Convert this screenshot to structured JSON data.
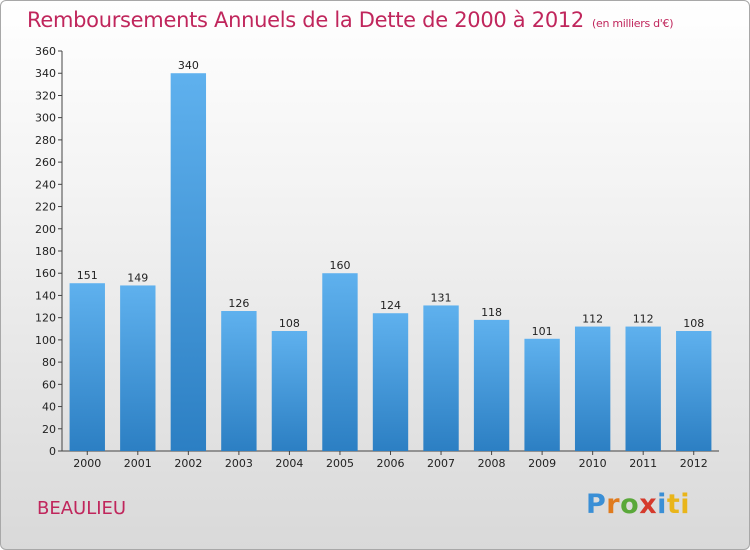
{
  "title": "Remboursements Annuels de la Dette de 2000 à 2012",
  "subtitle": "(en milliers d'€)",
  "commune": "BEAULIEU",
  "logo": "Proxiti",
  "colors": {
    "title": "#c0265c",
    "bar_top": "#5fb1ee",
    "bar_bottom": "#2c7fc3"
  },
  "chart_data": {
    "type": "bar",
    "title": "Remboursements Annuels de la Dette de 2000 à 2012",
    "xlabel": "",
    "ylabel": "",
    "categories": [
      "2000",
      "2001",
      "2002",
      "2003",
      "2004",
      "2005",
      "2006",
      "2007",
      "2008",
      "2009",
      "2010",
      "2011",
      "2012"
    ],
    "values": [
      151,
      149,
      340,
      126,
      108,
      160,
      124,
      131,
      118,
      101,
      112,
      112,
      108
    ],
    "ylim": [
      0,
      360
    ],
    "yticks": [
      0,
      20,
      40,
      60,
      80,
      100,
      120,
      140,
      160,
      180,
      200,
      220,
      240,
      260,
      280,
      300,
      320,
      340,
      360
    ],
    "grid": false,
    "legend": "none"
  }
}
